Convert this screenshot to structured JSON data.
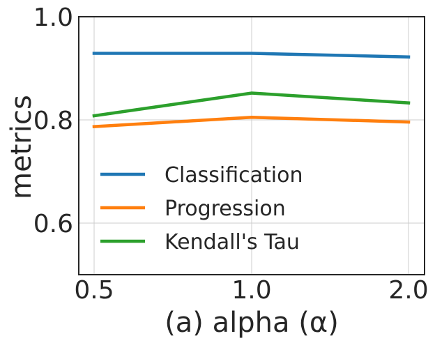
{
  "chart_data": {
    "type": "line",
    "x": [
      "0.5",
      "1.0",
      "2.0"
    ],
    "xlabel": "(a) alpha (α)",
    "ylabel": "metrics",
    "ylim": [
      0.5,
      1.0
    ],
    "yticks": [
      "0.6",
      "0.8",
      "1.0"
    ],
    "ytick_values": [
      0.6,
      0.8,
      1.0
    ],
    "grid": true,
    "legend_placement": "lower-left",
    "series": [
      {
        "name": "Classification",
        "values": [
          0.929,
          0.929,
          0.922
        ],
        "color": "#1f77b4"
      },
      {
        "name": "Progression",
        "values": [
          0.787,
          0.805,
          0.796
        ],
        "color": "#ff7f0e"
      },
      {
        "name": "Kendall's Tau",
        "values": [
          0.808,
          0.852,
          0.833
        ],
        "color": "#2ca02c"
      }
    ]
  }
}
